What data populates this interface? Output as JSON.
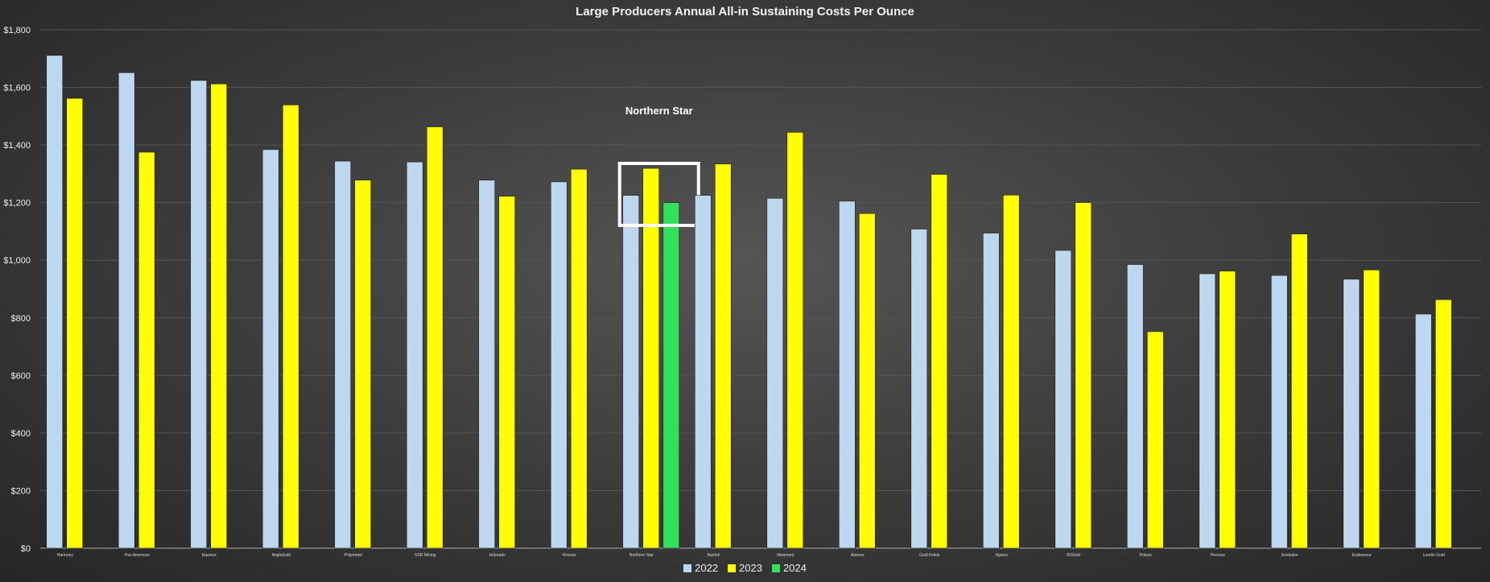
{
  "chart_data": {
    "type": "bar",
    "title": "Large Producers Annual All-in Sustaining Costs Per Ounce",
    "xlabel": "",
    "ylabel": "",
    "ylim": [
      0,
      1800
    ],
    "yticks": [
      "$0",
      "$200",
      "$400",
      "$600",
      "$800",
      "$1,000",
      "$1,200",
      "$1,400",
      "$1,600",
      "$1,800"
    ],
    "grid": true,
    "legend_position": "bottom",
    "categories": [
      "Harmony",
      "Pan American",
      "Equinox",
      "AngloGold",
      "Polymetal",
      "SSR Mining",
      "Eldorado",
      "Kinross",
      "Northern Star",
      "Barrick",
      "Newmont",
      "Alamos",
      "Gold Fields",
      "Agnico",
      "B2Gold",
      "Polyus",
      "Perseus",
      "Evolution",
      "Endeavour",
      "Lundin Gold"
    ],
    "series": [
      {
        "name": "2022",
        "color": "#bdd7ee",
        "values": [
          1711,
          1651,
          1624,
          1384,
          1344,
          1341,
          1278,
          1272,
          1225,
          1225,
          1215,
          1205,
          1108,
          1094,
          1034,
          985,
          953,
          947,
          934,
          813
        ]
      },
      {
        "name": "2023",
        "color": "#ffff00",
        "values": [
          1562,
          1375,
          1612,
          1539,
          1278,
          1463,
          1222,
          1316,
          1319,
          1334,
          1444,
          1162,
          1298,
          1226,
          1200,
          752,
          962,
          1091,
          966,
          863
        ]
      },
      {
        "name": "2024",
        "color": "#33e05a",
        "values": [
          null,
          null,
          null,
          null,
          null,
          null,
          null,
          null,
          1200,
          null,
          null,
          null,
          null,
          null,
          null,
          null,
          null,
          null,
          null,
          null
        ]
      }
    ],
    "annotations": [
      {
        "text": "Northern Star",
        "target": "Northern Star",
        "type": "highlight-box"
      }
    ]
  }
}
